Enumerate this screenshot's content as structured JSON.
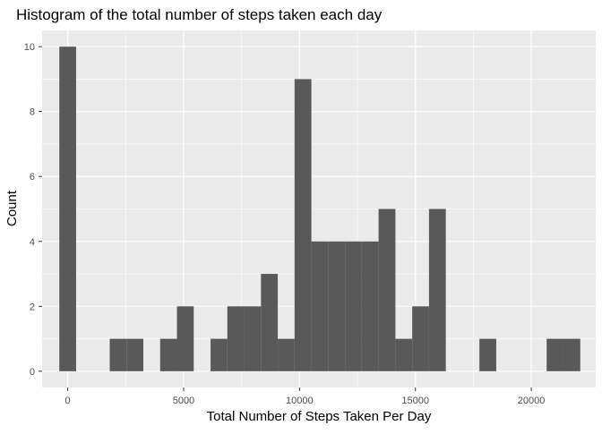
{
  "chart_data": {
    "type": "bar",
    "title": "Histogram of the total number of steps taken each day",
    "xlabel": "Total Number of Steps Taken Per Day",
    "ylabel": "Count",
    "grid": true,
    "panel_background": "#ebebeb",
    "grid_color": "#ffffff",
    "bar_color": "#595959",
    "xlim": [
      -1105,
      22780
    ],
    "ylim": [
      -0.5,
      10.5
    ],
    "x_ticks": [
      0,
      5000,
      10000,
      15000,
      20000
    ],
    "x_tick_labels": [
      "0",
      "5000",
      "10000",
      "15000",
      "20000"
    ],
    "y_ticks": [
      0,
      2,
      4,
      6,
      8,
      10
    ],
    "y_tick_labels": [
      "0",
      "2",
      "4",
      "6",
      "8",
      "10"
    ],
    "bin_width": 725,
    "x_start": -362.5,
    "values": [
      10,
      0,
      0,
      1,
      1,
      0,
      1,
      2,
      0,
      1,
      2,
      2,
      3,
      1,
      9,
      4,
      4,
      4,
      4,
      5,
      1,
      2,
      5,
      0,
      0,
      1,
      0,
      0,
      0,
      1,
      1
    ]
  }
}
